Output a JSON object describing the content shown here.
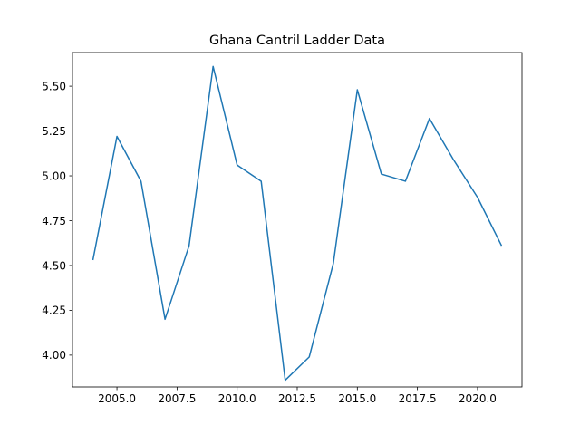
{
  "chart_data": {
    "type": "line",
    "title": "Ghana Cantril Ladder Data",
    "xlabel": "",
    "ylabel": "",
    "xlim": [
      2003.15,
      2021.85
    ],
    "ylim": [
      3.8225,
      5.6875
    ],
    "grid": false,
    "x_ticks": [
      2005.0,
      2007.5,
      2010.0,
      2012.5,
      2015.0,
      2017.5,
      2020.0
    ],
    "x_tick_labels": [
      "2005.0",
      "2007.5",
      "2010.0",
      "2012.5",
      "2015.0",
      "2017.5",
      "2020.0"
    ],
    "y_ticks": [
      4.0,
      4.25,
      4.5,
      4.75,
      5.0,
      5.25,
      5.5
    ],
    "y_tick_labels": [
      "4.00",
      "4.25",
      "4.50",
      "4.75",
      "5.00",
      "5.25",
      "5.50"
    ],
    "color": "#1f77b4",
    "series": [
      {
        "x": [
          2004,
          2005,
          2006,
          2007,
          2008,
          2009,
          2010,
          2011,
          2012,
          2013,
          2014,
          2015,
          2016,
          2017,
          2018,
          2019,
          2020,
          2021
        ],
        "y": [
          4.53,
          5.22,
          4.97,
          4.2,
          4.61,
          5.61,
          5.06,
          4.97,
          3.86,
          3.99,
          4.51,
          5.48,
          5.01,
          4.97,
          5.32,
          5.09,
          4.88,
          4.61
        ]
      }
    ]
  }
}
